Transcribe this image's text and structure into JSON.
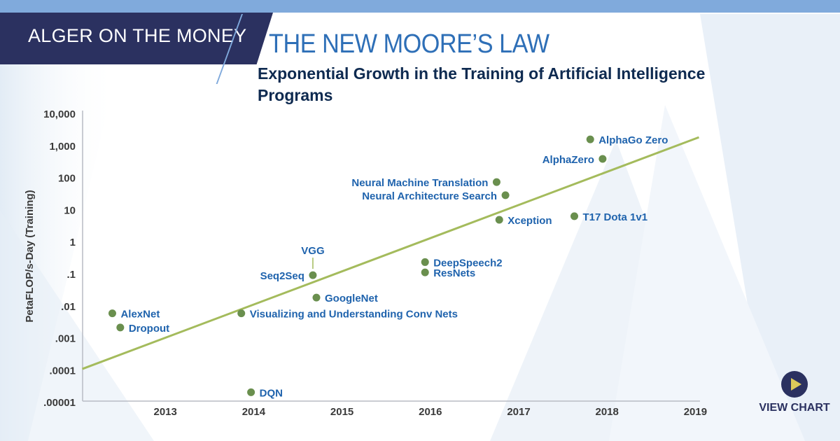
{
  "header": {
    "brand": "ALGER ON THE MONEY",
    "title": "THE NEW MOORE’S LAW",
    "subtitle": "Exponential Growth in the Training of Artificial Intelligence Programs"
  },
  "cta": {
    "label": "VIEW CHART",
    "icon": "play-icon"
  },
  "colors": {
    "brand_navy": "#2b3160",
    "title_blue": "#2e6fb7",
    "label_blue": "#1f63ad",
    "point_green": "#6a8f4e",
    "trend_green": "#a4bb5c",
    "top_band": "#80aadc"
  },
  "chart_data": {
    "type": "scatter",
    "ylabel": "PetaFLOP/s-Day (Training)",
    "xlabel": "",
    "yscale": "log",
    "ylim": [
      1e-05,
      10000
    ],
    "xlim": [
      2012.06,
      2019.05
    ],
    "yticks": [
      "10,000",
      "1,000",
      "100",
      "10",
      "1",
      ".1",
      ".01",
      ".001",
      ".0001",
      ".00001"
    ],
    "ytick_values": [
      10000,
      1000,
      100,
      10,
      1,
      0.1,
      0.01,
      0.001,
      0.0001,
      1e-05
    ],
    "xticks": [
      "2013",
      "2014",
      "2015",
      "2016",
      "2017",
      "2018",
      "2019"
    ],
    "grid": false,
    "points": [
      {
        "label": "AlexNet",
        "x": 2012.4,
        "y": 0.0058
      },
      {
        "label": "Dropout",
        "x": 2012.49,
        "y": 0.0021
      },
      {
        "label": "Visualizing and Understanding Conv Nets",
        "x": 2013.86,
        "y": 0.0058
      },
      {
        "label": "DQN",
        "x": 2013.97,
        "y": 2e-05
      },
      {
        "label": "Seq2Seq",
        "x": 2014.67,
        "y": 0.09
      },
      {
        "label": "VGG",
        "x": 2014.67,
        "y": 0.09
      },
      {
        "label": "GoogleNet",
        "x": 2014.71,
        "y": 0.018
      },
      {
        "label": "DeepSpeech2",
        "x": 2015.94,
        "y": 0.23
      },
      {
        "label": "ResNets",
        "x": 2015.94,
        "y": 0.11
      },
      {
        "label": "Neural Machine Translation",
        "x": 2016.75,
        "y": 72
      },
      {
        "label": "Neural Architecture Search",
        "x": 2016.85,
        "y": 28
      },
      {
        "label": "Xception",
        "x": 2016.78,
        "y": 4.8
      },
      {
        "label": "T17 Dota 1v1",
        "x": 2017.63,
        "y": 6.2
      },
      {
        "label": "AlphaGo Zero",
        "x": 2017.81,
        "y": 1550
      },
      {
        "label": "AlphaZero",
        "x": 2017.95,
        "y": 380
      }
    ],
    "trend_line": {
      "x": [
        2012.06,
        2019.04
      ],
      "y": [
        0.000107,
        1800
      ]
    }
  }
}
